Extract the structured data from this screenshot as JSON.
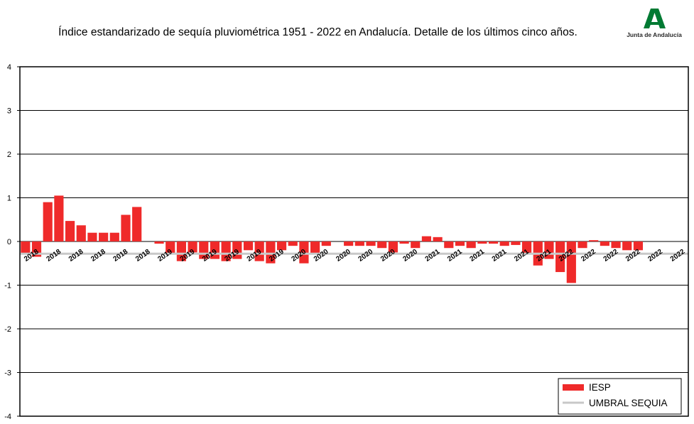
{
  "chart_data": {
    "type": "bar",
    "title": "Índice estandarizado de sequía pluviométrica 1951 - 2022 en Andalucía. Detalle de los últimos cinco años.",
    "ylim": [
      -4,
      4
    ],
    "yticks": [
      4,
      3,
      2,
      1,
      0,
      -1,
      -2,
      -3,
      -4
    ],
    "grid": true,
    "legend_position": "bottom-right",
    "categories": [
      "2018",
      "2018",
      "2018",
      "2018",
      "2018",
      "2018",
      "2018",
      "2018",
      "2018",
      "2018",
      "2018",
      "2018",
      "2019",
      "2019",
      "2019",
      "2019",
      "2019",
      "2019",
      "2019",
      "2019",
      "2019",
      "2019",
      "2019",
      "2019",
      "2020",
      "2020",
      "2020",
      "2020",
      "2020",
      "2020",
      "2020",
      "2020",
      "2020",
      "2020",
      "2020",
      "2020",
      "2021",
      "2021",
      "2021",
      "2021",
      "2021",
      "2021",
      "2021",
      "2021",
      "2021",
      "2021",
      "2021",
      "2021",
      "2022",
      "2022",
      "2022",
      "2022",
      "2022",
      "2022",
      "2022",
      "2022",
      "2022",
      "2022",
      "2022",
      "2022"
    ],
    "series": [
      {
        "name": "IESP",
        "color": "#ef2a2a",
        "values": [
          -0.3,
          -0.35,
          0.9,
          1.05,
          0.47,
          0.37,
          0.2,
          0.2,
          0.2,
          0.61,
          0.79,
          0.0,
          -0.05,
          -0.3,
          -0.45,
          -0.25,
          -0.4,
          -0.4,
          -0.45,
          -0.4,
          -0.2,
          -0.45,
          -0.5,
          -0.2,
          -0.1,
          -0.5,
          -0.3,
          -0.1,
          0.0,
          -0.1,
          -0.1,
          -0.1,
          -0.15,
          -0.25,
          -0.05,
          -0.15,
          0.12,
          0.1,
          -0.15,
          -0.1,
          -0.15,
          -0.05,
          -0.05,
          -0.1,
          -0.08,
          -0.3,
          -0.55,
          -0.4,
          -0.7,
          -0.95,
          -0.15,
          0.03,
          -0.1,
          -0.15,
          -0.2,
          -0.2,
          0.0,
          0.0,
          0.0,
          0.0
        ]
      },
      {
        "name": "UMBRAL SEQUIA",
        "color": "#c8c8c8",
        "type": "line",
        "value": -0.28
      }
    ]
  },
  "logo": {
    "text": "Junta de Andalucía",
    "icon": "junta-andalucia-logo",
    "color": "#007a33"
  }
}
